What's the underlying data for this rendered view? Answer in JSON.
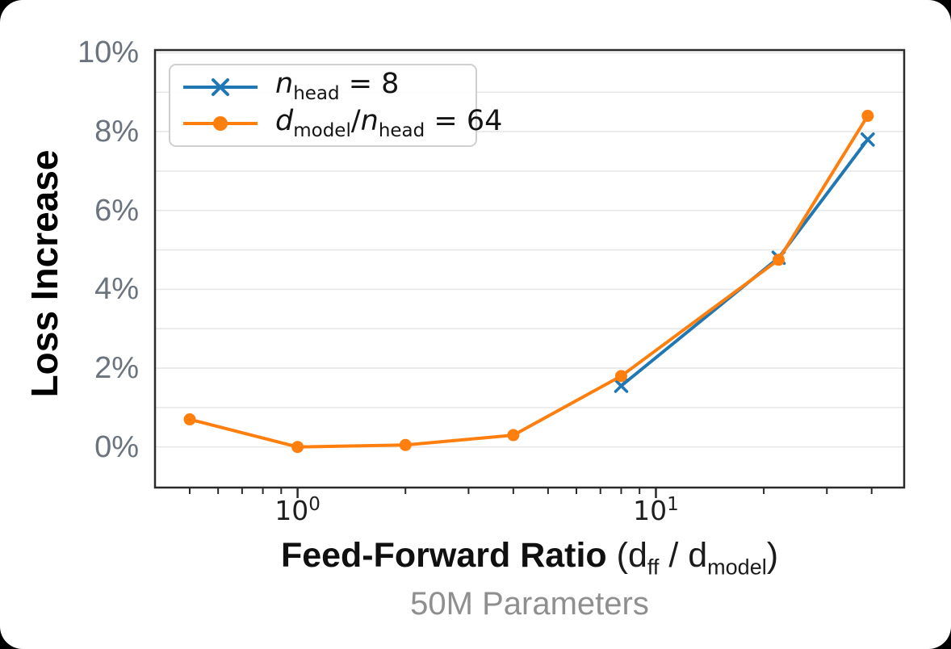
{
  "chart_data": {
    "type": "line",
    "x_scale": "log",
    "grid": "horizontal-only",
    "legend_position": "upper-left",
    "x_axis": {
      "range": [
        0.4,
        49.3
      ],
      "major_ticks": [
        {
          "value": 1,
          "label_base": "10",
          "label_exp": "0"
        },
        {
          "value": 10,
          "label_base": "10",
          "label_exp": "1"
        }
      ],
      "minor_ticks": [
        0.5,
        0.6,
        0.7,
        0.8,
        0.9,
        2,
        3,
        4,
        5,
        6,
        7,
        8,
        9,
        20,
        30,
        40
      ],
      "label_bold": "Feed-Forward Ratio",
      "label_paren": {
        "pre": " (d",
        "sub1": "ff",
        "mid": " / d",
        "sub2": "model",
        "post": ")"
      },
      "subtitle": "50M Parameters"
    },
    "y_axis": {
      "label": "Loss Increase",
      "range": [
        -1.03,
        10.07
      ],
      "grid_step": 1,
      "grid_max": 10,
      "ticks": [
        {
          "value": 0,
          "label": "0%"
        },
        {
          "value": 2,
          "label": "2%"
        },
        {
          "value": 4,
          "label": "4%"
        },
        {
          "value": 6,
          "label": "6%"
        },
        {
          "value": 8,
          "label": "8%"
        },
        {
          "value": 10,
          "label": "10%"
        }
      ]
    },
    "series": [
      {
        "id": "nhead-8",
        "name": "n_head = 8",
        "color": "#1f77b4",
        "marker": "x",
        "x": [
          8,
          22,
          39
        ],
        "y": [
          1.55,
          4.8,
          7.8
        ]
      },
      {
        "id": "dmodel-over-nhead-64",
        "name": "d_model/n_head = 64",
        "color": "#ff7f0e",
        "marker": "circle",
        "x": [
          0.5,
          1,
          2,
          4,
          8,
          22,
          39
        ],
        "y": [
          0.7,
          0.0,
          0.05,
          0.3,
          1.8,
          4.75,
          8.4
        ]
      }
    ],
    "legend": {
      "items": [
        {
          "marker": "x",
          "parts": {
            "v1": "n",
            "s1": "head",
            "tail": " = 8"
          }
        },
        {
          "marker": "circle",
          "parts": {
            "v1": "d",
            "s1": "model",
            "mid": "/",
            "v2": "n",
            "s2": "head",
            "tail": " = 64"
          }
        }
      ]
    },
    "colors": {
      "grid": "#e7e7e7",
      "spine": "#2a2a2a",
      "y_tick_label": "#6a737e",
      "x_tick_label": "#1e1e1e",
      "subtitle": "#8f8f8f"
    }
  }
}
